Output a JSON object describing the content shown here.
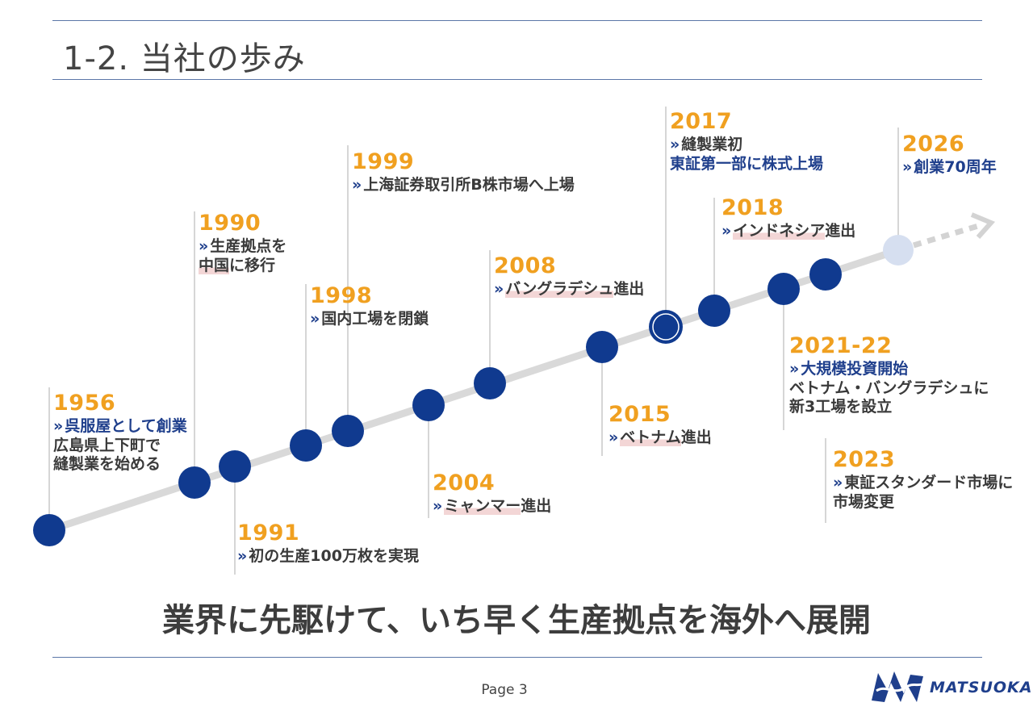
{
  "title": "1-2. 当社の歩み",
  "events": [
    {
      "year": "1956",
      "lines": [
        {
          "text": "呉服屋として創業",
          "arrow": true,
          "color": "blue"
        },
        {
          "text": "広島県上下町で"
        },
        {
          "text": "縫製業を始める"
        }
      ]
    },
    {
      "year": "1990",
      "lines": [
        {
          "text": "生産拠点を",
          "arrow": true
        },
        {
          "text": "中国",
          "hl": true,
          "after": "に移行"
        }
      ]
    },
    {
      "year": "1991",
      "lines": [
        {
          "text": "初の生産100万枚を実現",
          "arrow": true
        }
      ]
    },
    {
      "year": "1998",
      "lines": [
        {
          "text": "国内工場を閉鎖",
          "arrow": true
        }
      ]
    },
    {
      "year": "1999",
      "lines": [
        {
          "text": "上海証券取引所B株市場へ上場",
          "arrow": true
        }
      ]
    },
    {
      "year": "2004",
      "lines": [
        {
          "text": "ミャンマー",
          "arrow": true,
          "hl": true,
          "after": "進出"
        }
      ]
    },
    {
      "year": "2008",
      "lines": [
        {
          "text": "バングラデシュ",
          "arrow": true,
          "hl": true,
          "after": "進出"
        }
      ]
    },
    {
      "year": "2015",
      "lines": [
        {
          "text": "ベトナム",
          "arrow": true,
          "hl": true,
          "after": "進出"
        }
      ]
    },
    {
      "year": "2017",
      "lines": [
        {
          "text": "縫製業初",
          "arrow": true
        },
        {
          "text": "東証第一部に株式上場",
          "color": "blue"
        }
      ]
    },
    {
      "year": "2018",
      "lines": [
        {
          "text": "インドネシア",
          "arrow": true,
          "hl": true,
          "after": "進出"
        }
      ]
    },
    {
      "year": "2021-22",
      "lines": [
        {
          "text": "大規模投資開始",
          "arrow": true,
          "color": "blue"
        },
        {
          "text": "ベトナム・バングラデシュに"
        },
        {
          "text": "新3工場を設立"
        }
      ]
    },
    {
      "year": "2023",
      "lines": [
        {
          "text": "東証スタンダード市場に",
          "arrow": true
        },
        {
          "text": "市場変更"
        }
      ]
    },
    {
      "year": "2026",
      "lines": [
        {
          "text": "創業70周年",
          "arrow": true,
          "color": "blue"
        }
      ]
    }
  ],
  "arrow_glyph": "»",
  "slogan": "業界に先駆けて、いち早く生産拠点を海外へ展開",
  "page_label": "Page 3",
  "logo_text": "MATSUOKA",
  "colors": {
    "year": "#f0a020",
    "dot": "#103a8f",
    "future_dot": "#d6dff0",
    "text": "#3a3a3a",
    "accent_text": "#1f3f8c",
    "highlight": "#f3d6d6",
    "rule": "#5b77a8"
  }
}
